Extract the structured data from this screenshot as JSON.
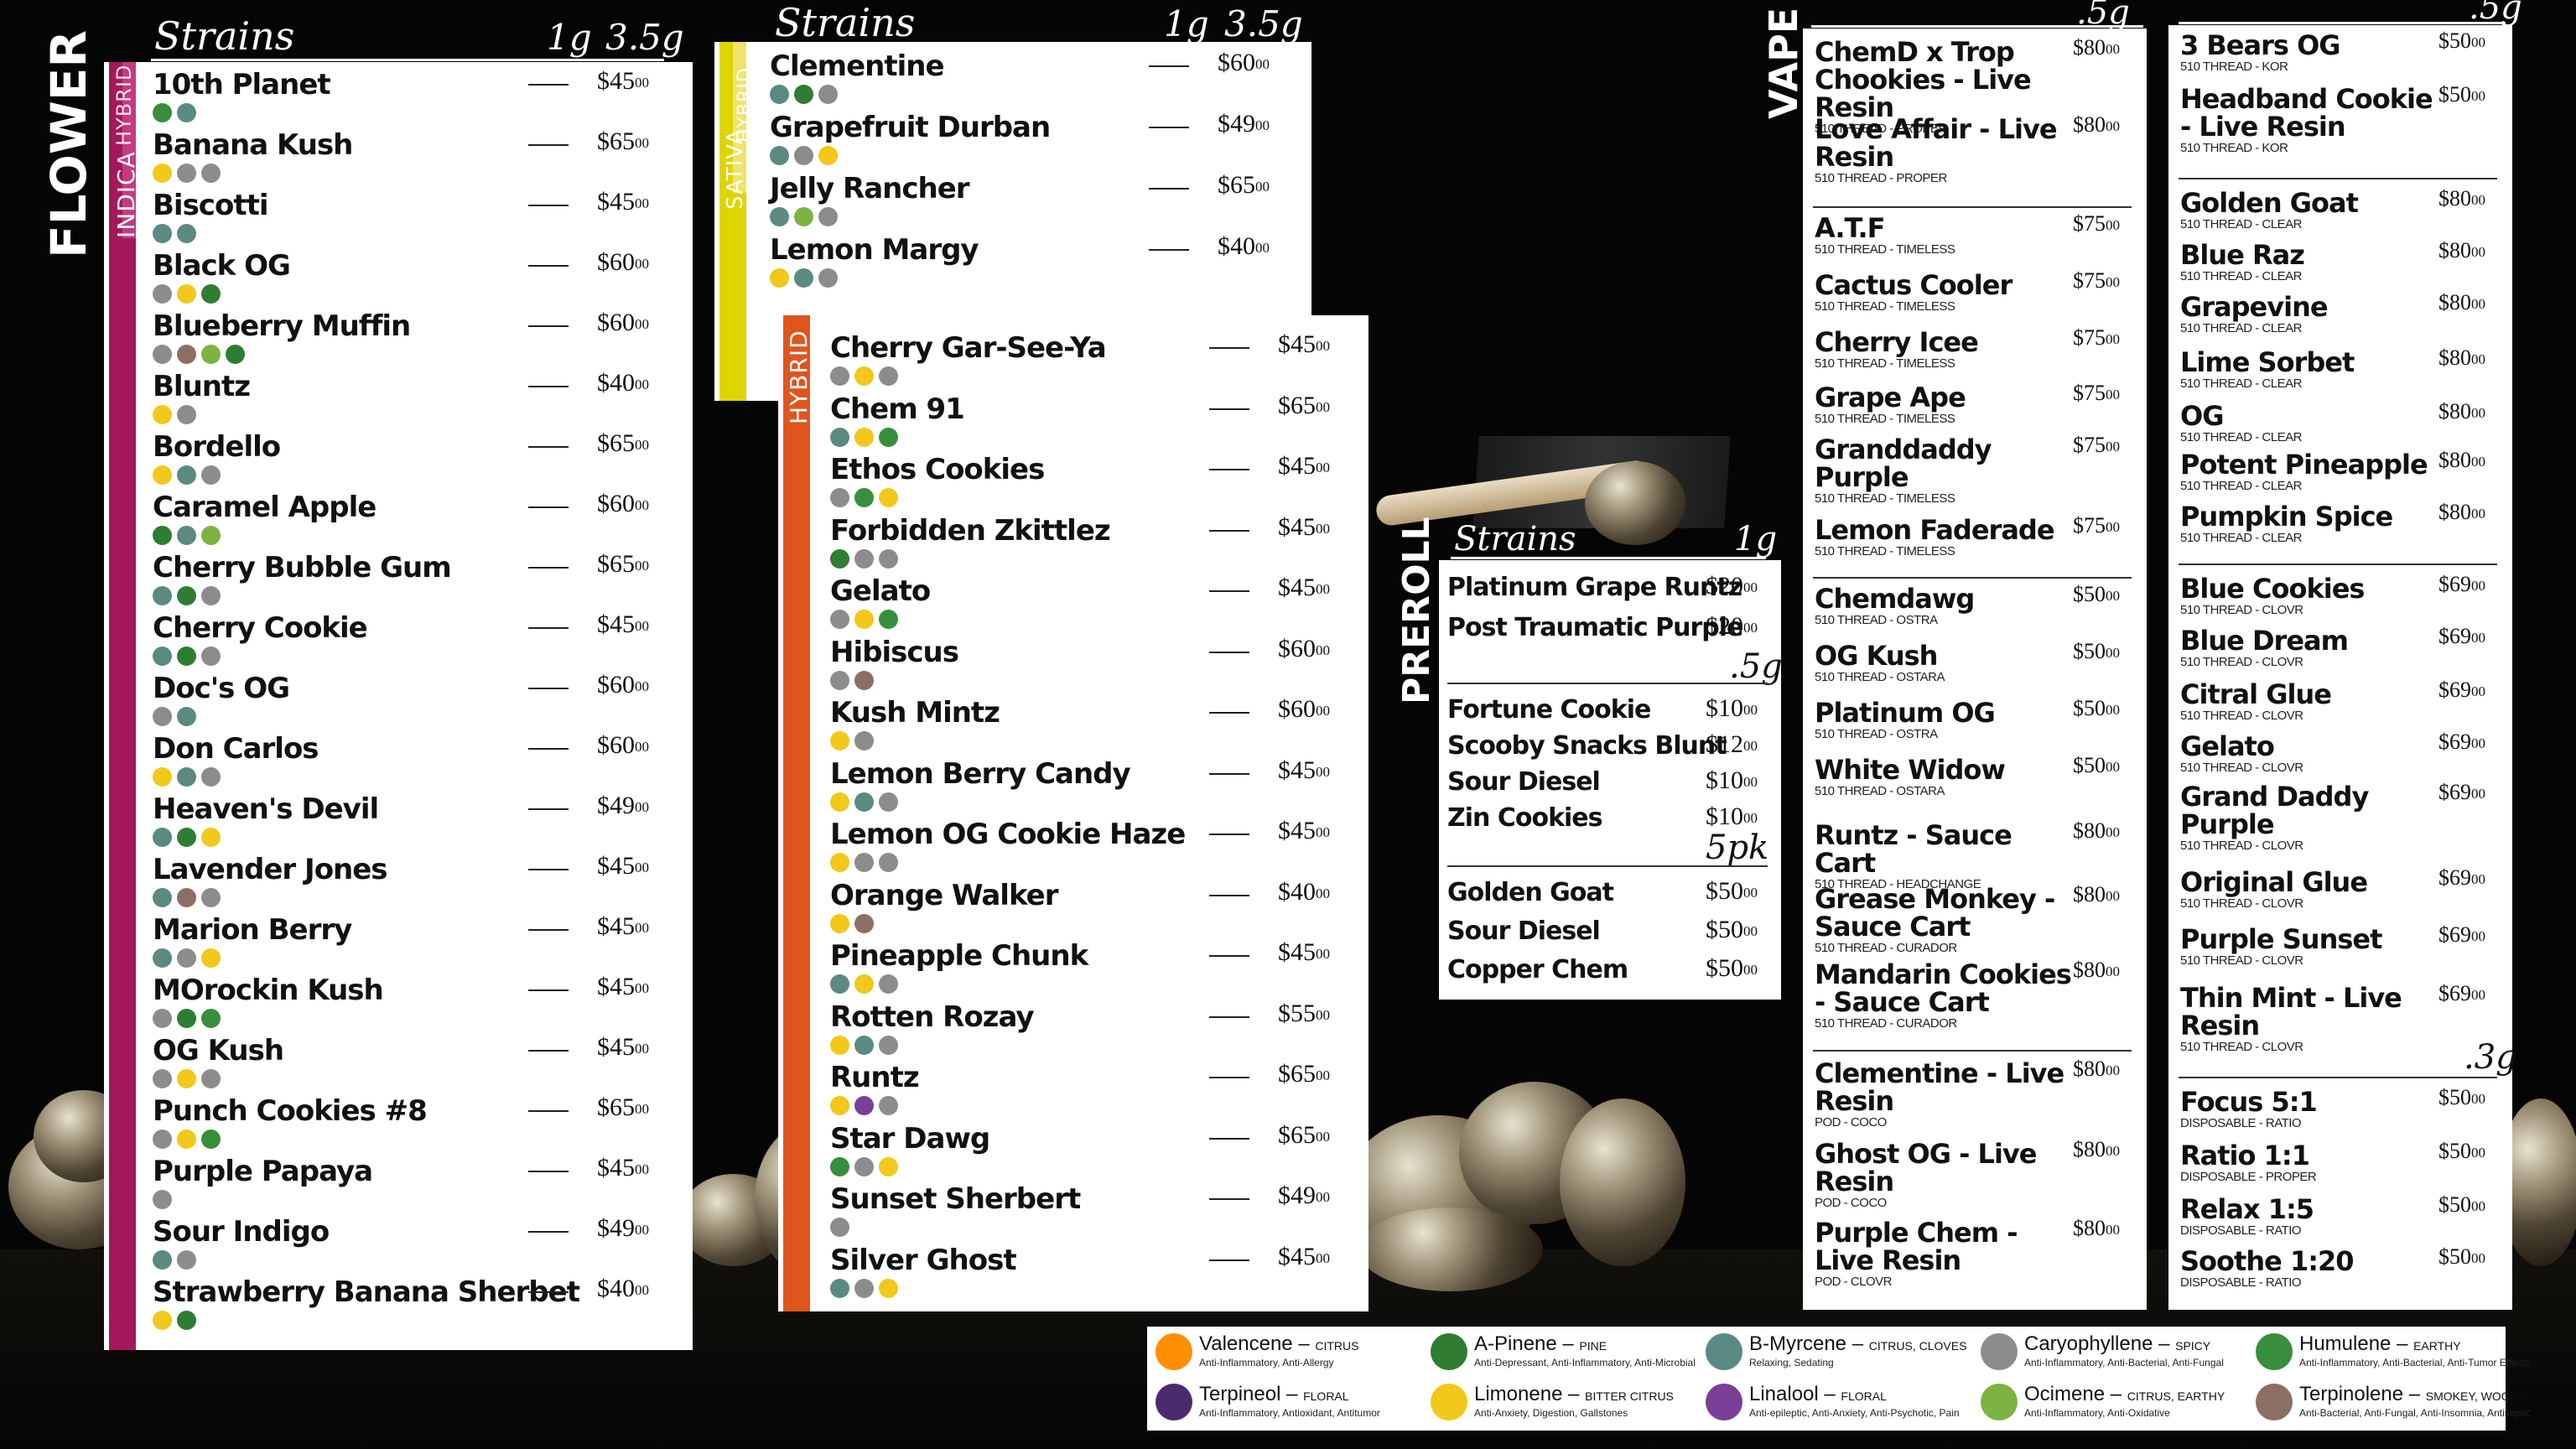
{
  "flower": {
    "label": "FLOWER",
    "header": {
      "strains": "Strains",
      "w1": "1g",
      "w2": "3.5g"
    },
    "indica_hybrid": {
      "tag_a": "INDICA",
      "tag_b": "HYBRID",
      "items": [
        {
          "name": "10th Planet",
          "price": "$45",
          "cents": "00",
          "icons": [
            "humulene",
            "myrcene"
          ]
        },
        {
          "name": "Banana Kush",
          "price": "$65",
          "cents": "00",
          "icons": [
            "limonene",
            "caryophyllene",
            "caryophyllene"
          ]
        },
        {
          "name": "Biscotti",
          "price": "$45",
          "cents": "00",
          "icons": [
            "myrcene",
            "myrcene"
          ]
        },
        {
          "name": "Black OG",
          "price": "$60",
          "cents": "00",
          "icons": [
            "caryophyllene",
            "limonene",
            "pinene"
          ]
        },
        {
          "name": "Blueberry Muffin",
          "price": "$60",
          "cents": "00",
          "icons": [
            "caryophyllene",
            "terpinolene",
            "ocimene",
            "pinene"
          ]
        },
        {
          "name": "Bluntz",
          "price": "$40",
          "cents": "00",
          "icons": [
            "limonene",
            "caryophyllene"
          ]
        },
        {
          "name": "Bordello",
          "price": "$65",
          "cents": "00",
          "icons": [
            "limonene",
            "myrcene",
            "caryophyllene"
          ]
        },
        {
          "name": "Caramel Apple",
          "price": "$60",
          "cents": "00",
          "icons": [
            "pinene",
            "myrcene",
            "ocimene"
          ]
        },
        {
          "name": "Cherry Bubble Gum",
          "price": "$65",
          "cents": "00",
          "icons": [
            "myrcene",
            "pinene",
            "caryophyllene"
          ]
        },
        {
          "name": "Cherry Cookie",
          "price": "$45",
          "cents": "00",
          "icons": [
            "myrcene",
            "pinene",
            "caryophyllene"
          ]
        },
        {
          "name": "Doc's OG",
          "price": "$60",
          "cents": "00",
          "icons": [
            "caryophyllene",
            "myrcene"
          ]
        },
        {
          "name": "Don Carlos",
          "price": "$60",
          "cents": "00",
          "icons": [
            "limonene",
            "myrcene",
            "caryophyllene"
          ]
        },
        {
          "name": "Heaven's Devil",
          "price": "$49",
          "cents": "00",
          "icons": [
            "myrcene",
            "pinene",
            "limonene"
          ]
        },
        {
          "name": "Lavender Jones",
          "price": "$45",
          "cents": "00",
          "icons": [
            "myrcene",
            "terpinolene",
            "caryophyllene"
          ]
        },
        {
          "name": "Marion Berry",
          "price": "$45",
          "cents": "00",
          "icons": [
            "myrcene",
            "caryophyllene",
            "limonene"
          ]
        },
        {
          "name": "MOrockin Kush",
          "price": "$45",
          "cents": "00",
          "icons": [
            "caryophyllene",
            "pinene",
            "humulene"
          ]
        },
        {
          "name": "OG Kush",
          "price": "$45",
          "cents": "00",
          "icons": [
            "caryophyllene",
            "limonene",
            "caryophyllene"
          ]
        },
        {
          "name": "Punch Cookies #8",
          "price": "$65",
          "cents": "00",
          "icons": [
            "caryophyllene",
            "limonene",
            "humulene"
          ]
        },
        {
          "name": "Purple Papaya",
          "price": "$45",
          "cents": "00",
          "icons": [
            "caryophyllene"
          ]
        },
        {
          "name": "Sour Indigo",
          "price": "$49",
          "cents": "00",
          "icons": [
            "myrcene",
            "caryophyllene"
          ]
        },
        {
          "name": "Strawberry Banana Sherbet",
          "price": "$40",
          "cents": "00",
          "icons": [
            "limonene",
            "pinene"
          ]
        }
      ]
    },
    "sativa_hybrid": {
      "tag_a": "SATIVA",
      "tag_b": "HYBRID",
      "header": {
        "strains": "Strains",
        "w1": "1g",
        "w2": "3.5g"
      },
      "items": [
        {
          "name": "Clementine",
          "price": "$60",
          "cents": "00",
          "icons": [
            "myrcene",
            "pinene",
            "caryophyllene"
          ]
        },
        {
          "name": "Grapefruit Durban",
          "price": "$49",
          "cents": "00",
          "icons": [
            "myrcene",
            "caryophyllene",
            "limonene"
          ]
        },
        {
          "name": "Jelly Rancher",
          "price": "$65",
          "cents": "00",
          "icons": [
            "myrcene",
            "ocimene",
            "caryophyllene"
          ]
        },
        {
          "name": "Lemon Margy",
          "price": "$40",
          "cents": "00",
          "icons": [
            "limonene",
            "myrcene",
            "caryophyllene"
          ]
        }
      ]
    },
    "hybrid": {
      "tag": "HYBRID",
      "items": [
        {
          "name": "Cherry Gar-See-Ya",
          "price": "$45",
          "cents": "00",
          "icons": [
            "caryophyllene",
            "limonene",
            "caryophyllene"
          ]
        },
        {
          "name": "Chem 91",
          "price": "$65",
          "cents": "00",
          "icons": [
            "myrcene",
            "limonene",
            "humulene"
          ]
        },
        {
          "name": "Ethos Cookies",
          "price": "$45",
          "cents": "00",
          "icons": [
            "caryophyllene",
            "humulene",
            "limonene"
          ]
        },
        {
          "name": "Forbidden Zkittlez",
          "price": "$45",
          "cents": "00",
          "icons": [
            "pinene",
            "caryophyllene",
            "caryophyllene"
          ]
        },
        {
          "name": "Gelato",
          "price": "$45",
          "cents": "00",
          "icons": [
            "caryophyllene",
            "limonene",
            "humulene"
          ]
        },
        {
          "name": "Hibiscus",
          "price": "$60",
          "cents": "00",
          "icons": [
            "caryophyllene",
            "terpinolene"
          ]
        },
        {
          "name": "Kush Mintz",
          "price": "$60",
          "cents": "00",
          "icons": [
            "limonene",
            "caryophyllene"
          ]
        },
        {
          "name": "Lemon Berry Candy",
          "price": "$45",
          "cents": "00",
          "icons": [
            "limonene",
            "myrcene",
            "caryophyllene"
          ]
        },
        {
          "name": "Lemon OG Cookie Haze",
          "price": "$45",
          "cents": "00",
          "icons": [
            "limonene",
            "caryophyllene",
            "caryophyllene"
          ]
        },
        {
          "name": "Orange Walker",
          "price": "$40",
          "cents": "00",
          "icons": [
            "limonene",
            "terpinolene"
          ]
        },
        {
          "name": "Pineapple Chunk",
          "price": "$45",
          "cents": "00",
          "icons": [
            "myrcene",
            "limonene",
            "caryophyllene"
          ]
        },
        {
          "name": "Rotten Rozay",
          "price": "$55",
          "cents": "00",
          "icons": [
            "limonene",
            "myrcene",
            "caryophyllene"
          ]
        },
        {
          "name": "Runtz",
          "price": "$65",
          "cents": "00",
          "icons": [
            "limonene",
            "linalool",
            "caryophyllene"
          ]
        },
        {
          "name": "Star Dawg",
          "price": "$65",
          "cents": "00",
          "icons": [
            "humulene",
            "caryophyllene",
            "limonene"
          ]
        },
        {
          "name": "Sunset Sherbert",
          "price": "$49",
          "cents": "00",
          "icons": [
            "caryophyllene"
          ]
        },
        {
          "name": "Silver Ghost",
          "price": "$45",
          "cents": "00",
          "icons": [
            "myrcene",
            "caryophyllene",
            "limonene"
          ]
        }
      ]
    }
  },
  "preroll": {
    "label": "PREROLL",
    "header": {
      "strains": "Strains",
      "w1": "1g"
    },
    "a": [
      {
        "name": "Platinum Grape Runtz",
        "price": "$20",
        "cents": "00"
      },
      {
        "name": "Post Traumatic Purple",
        "price": "$20",
        "cents": "00"
      }
    ],
    "b_size": ".5g",
    "b": [
      {
        "name": "Fortune Cookie",
        "price": "$10",
        "cents": "00"
      },
      {
        "name": "Scooby Snacks Blunt",
        "price": "$12",
        "cents": "00"
      },
      {
        "name": "Sour Diesel",
        "price": "$10",
        "cents": "00"
      },
      {
        "name": "Zin Cookies",
        "price": "$10",
        "cents": "00"
      }
    ],
    "c_size": "5pk",
    "c": [
      {
        "name": "Golden Goat",
        "price": "$50",
        "cents": "00"
      },
      {
        "name": "Sour Diesel",
        "price": "$50",
        "cents": "00"
      },
      {
        "name": "Copper Chem",
        "price": "$50",
        "cents": "00"
      }
    ]
  },
  "vape": {
    "label": "VAPE",
    "col1_size": ".5g",
    "col2_size": ".5g",
    "col2_size2": ".3g",
    "col1": [
      {
        "name": "ChemD x Trop Chookies - Live Resin",
        "sub": "510 THREAD - PROPER",
        "price": "$80",
        "cents": "00"
      },
      {
        "name": "Love Affair - Live Resin",
        "sub": "510 THREAD - PROPER",
        "price": "$80",
        "cents": "00"
      },
      {
        "name": "A.T.F",
        "sub": "510 THREAD - TIMELESS",
        "price": "$75",
        "cents": "00"
      },
      {
        "name": "Cactus Cooler",
        "sub": "510 THREAD - TIMELESS",
        "price": "$75",
        "cents": "00"
      },
      {
        "name": "Cherry Icee",
        "sub": "510 THREAD - TIMELESS",
        "price": "$75",
        "cents": "00"
      },
      {
        "name": "Grape Ape",
        "sub": "510 THREAD - TIMELESS",
        "price": "$75",
        "cents": "00"
      },
      {
        "name": "Granddaddy Purple",
        "sub": "510 THREAD - TIMELESS",
        "price": "$75",
        "cents": "00"
      },
      {
        "name": "Lemon Faderade",
        "sub": "510 THREAD - TIMELESS",
        "price": "$75",
        "cents": "00"
      },
      {
        "name": "Chemdawg",
        "sub": "510 THREAD - OSTRA",
        "price": "$50",
        "cents": "00"
      },
      {
        "name": "OG Kush",
        "sub": "510 THREAD - OSTARA",
        "price": "$50",
        "cents": "00"
      },
      {
        "name": "Platinum OG",
        "sub": "510 THREAD - OSTRA",
        "price": "$50",
        "cents": "00"
      },
      {
        "name": "White Widow",
        "sub": "510 THREAD - OSTARA",
        "price": "$50",
        "cents": "00"
      },
      {
        "name": "Runtz - Sauce Cart",
        "sub": "510 THREAD - HEADCHANGE",
        "price": "$80",
        "cents": "00"
      },
      {
        "name": "Grease Monkey - Sauce Cart",
        "sub": "510 THREAD - CURADOR",
        "price": "$80",
        "cents": "00"
      },
      {
        "name": "Mandarin Cookies - Sauce Cart",
        "sub": "510 THREAD - CURADOR",
        "price": "$80",
        "cents": "00"
      },
      {
        "name": "Clementine - Live Resin",
        "sub": "POD - COCO",
        "price": "$80",
        "cents": "00"
      },
      {
        "name": "Ghost OG - Live Resin",
        "sub": "POD - COCO",
        "price": "$80",
        "cents": "00"
      },
      {
        "name": "Purple Chem - Live Resin",
        "sub": "POD - CLOVR",
        "price": "$80",
        "cents": "00"
      }
    ],
    "col2": [
      {
        "name": "3 Bears OG",
        "sub": "510 THREAD - KOR",
        "price": "$50",
        "cents": "00"
      },
      {
        "name": "Headband Cookie - Live Resin",
        "sub": "510 THREAD - KOR",
        "price": "$50",
        "cents": "00"
      },
      {
        "name": "Golden Goat",
        "sub": "510 THREAD - CLEAR",
        "price": "$80",
        "cents": "00"
      },
      {
        "name": "Blue Raz",
        "sub": "510 THREAD - CLEAR",
        "price": "$80",
        "cents": "00"
      },
      {
        "name": "Grapevine",
        "sub": "510 THREAD - CLEAR",
        "price": "$80",
        "cents": "00"
      },
      {
        "name": "Lime Sorbet",
        "sub": "510 THREAD - CLEAR",
        "price": "$80",
        "cents": "00"
      },
      {
        "name": "OG",
        "sub": "510 THREAD - CLEAR",
        "price": "$80",
        "cents": "00"
      },
      {
        "name": "Potent Pineapple",
        "sub": "510 THREAD - CLEAR",
        "price": "$80",
        "cents": "00"
      },
      {
        "name": "Pumpkin Spice",
        "sub": "510 THREAD - CLEAR",
        "price": "$80",
        "cents": "00"
      },
      {
        "name": "Blue Cookies",
        "sub": "510 THREAD - CLOVR",
        "price": "$69",
        "cents": "00"
      },
      {
        "name": "Blue Dream",
        "sub": "510 THREAD - CLOVR",
        "price": "$69",
        "cents": "00"
      },
      {
        "name": "Citral Glue",
        "sub": "510 THREAD - CLOVR",
        "price": "$69",
        "cents": "00"
      },
      {
        "name": "Gelato",
        "sub": "510 THREAD - CLOVR",
        "price": "$69",
        "cents": "00"
      },
      {
        "name": "Grand Daddy Purple",
        "sub": "510 THREAD - CLOVR",
        "price": "$69",
        "cents": "00"
      },
      {
        "name": "Original Glue",
        "sub": "510 THREAD - CLOVR",
        "price": "$69",
        "cents": "00"
      },
      {
        "name": "Purple Sunset",
        "sub": "510 THREAD - CLOVR",
        "price": "$69",
        "cents": "00"
      },
      {
        "name": "Thin Mint - Live Resin",
        "sub": "510 THREAD - CLOVR",
        "price": "$69",
        "cents": "00"
      },
      {
        "name": "Focus 5:1",
        "sub": "DISPOSABLE - RATIO",
        "price": "$50",
        "cents": "00"
      },
      {
        "name": "Ratio 1:1",
        "sub": "DISPOSABLE - PROPER",
        "price": "$50",
        "cents": "00"
      },
      {
        "name": "Relax 1:5",
        "sub": "DISPOSABLE - RATIO",
        "price": "$50",
        "cents": "00"
      },
      {
        "name": "Soothe 1:20",
        "sub": "DISPOSABLE - RATIO",
        "price": "$50",
        "cents": "00"
      }
    ]
  },
  "legend": [
    {
      "name": "Valencene",
      "note": "CITRUS",
      "desc": "Anti-Inflammatory, Anti-Allergy",
      "icon": "valencene-icon",
      "color": "#ff8f00"
    },
    {
      "name": "A-Pinene",
      "note": "PINE",
      "desc": "Anti-Depressant, Anti-Inflammatory, Anti-Microbial",
      "icon": "pinene-icon",
      "color": "#2e7d32"
    },
    {
      "name": "B-Myrcene",
      "note": "CITRUS, CLOVES",
      "desc": "Relaxing, Sedating",
      "icon": "myrcene-icon",
      "color": "#5a8a82"
    },
    {
      "name": "Caryophyllene",
      "note": "SPICY",
      "desc": "Anti-Inflammatory, Anti-Bacterial, Anti-Fungal",
      "icon": "caryophyllene-icon",
      "color": "#8c8c8c"
    },
    {
      "name": "Humulene",
      "note": "EARTHY",
      "desc": "Anti-Inflammatory, Anti-Bacterial, Anti-Tumor Effects",
      "icon": "humulene-icon",
      "color": "#388e3c"
    },
    {
      "name": "Terpineol",
      "note": "FLORAL",
      "desc": "Anti-Inflammatory, Antioxidant, Antitumor",
      "icon": "terpineol-icon",
      "color": "#4a2c6e"
    },
    {
      "name": "Limonene",
      "note": "BITTER CITRUS",
      "desc": "Anti-Anxiety, Digestion, Gallstones",
      "icon": "limonene-icon",
      "color": "#f2c81a"
    },
    {
      "name": "Linalool",
      "note": "FLORAL",
      "desc": "Anti-epileptic, Anti-Anxiety, Anti-Psychotic, Pain",
      "icon": "linalool-icon",
      "color": "#7b3f98"
    },
    {
      "name": "Ocimene",
      "note": "CITRUS, EARTHY",
      "desc": "Anti-Inflammatory, Anti-Oxidative",
      "icon": "ocimene-icon",
      "color": "#7cb342"
    },
    {
      "name": "Terpinolene",
      "note": "SMOKEY, WOODY",
      "desc": "Anti-Bacterial, Anti-Fungal, Anti-Insomnia, Antiseptic",
      "icon": "terpinolene-icon",
      "color": "#8d6e63"
    }
  ],
  "colors": {
    "indica": "#a3195b",
    "sativa": "#e0d400",
    "hybrid": "#e0551e"
  }
}
